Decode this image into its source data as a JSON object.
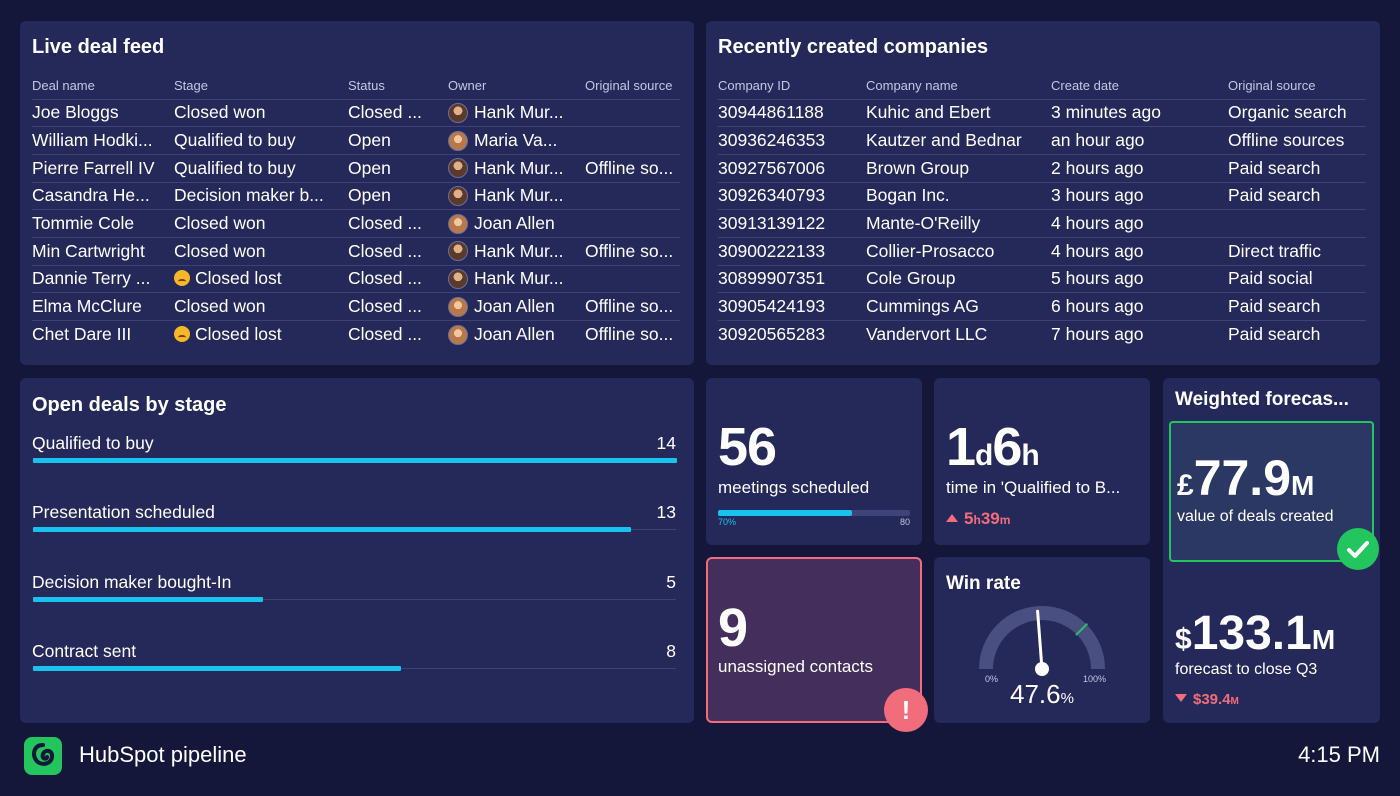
{
  "deal_feed": {
    "title": "Live deal feed",
    "columns": [
      "Deal name",
      "Stage",
      "Status",
      "Owner",
      "Original source"
    ],
    "rows": [
      {
        "deal": "Joe Bloggs",
        "stage": "Closed won",
        "emoji": false,
        "status": "Closed ...",
        "owner": "Hank Mur...",
        "avatar": "male",
        "source": ""
      },
      {
        "deal": "William Hodki...",
        "stage": "Qualified to buy",
        "emoji": false,
        "status": "Open",
        "owner": "Maria Va...",
        "avatar": "female",
        "source": ""
      },
      {
        "deal": "Pierre Farrell IV",
        "stage": "Qualified to buy",
        "emoji": false,
        "status": "Open",
        "owner": "Hank Mur...",
        "avatar": "male",
        "source": "Offline so..."
      },
      {
        "deal": "Casandra He...",
        "stage": "Decision maker b...",
        "emoji": false,
        "status": "Open",
        "owner": "Hank Mur...",
        "avatar": "male",
        "source": ""
      },
      {
        "deal": "Tommie Cole",
        "stage": "Closed won",
        "emoji": false,
        "status": "Closed ...",
        "owner": "Joan Allen",
        "avatar": "female",
        "source": ""
      },
      {
        "deal": "Min Cartwright",
        "stage": "Closed won",
        "emoji": false,
        "status": "Closed ...",
        "owner": "Hank Mur...",
        "avatar": "male",
        "source": "Offline so..."
      },
      {
        "deal": "Dannie Terry ...",
        "stage": "Closed lost",
        "emoji": true,
        "status": "Closed ...",
        "owner": "Hank Mur...",
        "avatar": "male",
        "source": ""
      },
      {
        "deal": "Elma McClure",
        "stage": "Closed won",
        "emoji": false,
        "status": "Closed ...",
        "owner": "Joan Allen",
        "avatar": "female",
        "source": "Offline so..."
      },
      {
        "deal": "Chet Dare III",
        "stage": "Closed lost",
        "emoji": true,
        "status": "Closed ...",
        "owner": "Joan Allen",
        "avatar": "female",
        "source": "Offline so..."
      }
    ]
  },
  "companies": {
    "title": "Recently created companies",
    "columns": [
      "Company ID",
      "Company name",
      "Create date",
      "Original source"
    ],
    "rows": [
      {
        "id": "30944861188",
        "name": "Kuhic and Ebert",
        "date": "3 minutes ago",
        "source": "Organic search"
      },
      {
        "id": "30936246353",
        "name": "Kautzer and Bednar",
        "date": "an hour ago",
        "source": "Offline sources"
      },
      {
        "id": "30927567006",
        "name": "Brown Group",
        "date": "2 hours ago",
        "source": "Paid search"
      },
      {
        "id": "30926340793",
        "name": "Bogan Inc.",
        "date": "3 hours ago",
        "source": "Paid search"
      },
      {
        "id": "30913139122",
        "name": "Mante-O'Reilly",
        "date": "4 hours ago",
        "source": ""
      },
      {
        "id": "30900222133",
        "name": "Collier-Prosacco",
        "date": "4 hours ago",
        "source": "Direct traffic"
      },
      {
        "id": "30899907351",
        "name": "Cole Group",
        "date": "5 hours ago",
        "source": "Paid social"
      },
      {
        "id": "30905424193",
        "name": "Cummings AG",
        "date": "6 hours ago",
        "source": "Paid search"
      },
      {
        "id": "30920565283",
        "name": "Vandervort LLC",
        "date": "7 hours ago",
        "source": "Paid search"
      }
    ]
  },
  "stages": {
    "title": "Open deals by stage",
    "max": 14,
    "items": [
      {
        "label": "Qualified to buy",
        "value": 14
      },
      {
        "label": "Presentation scheduled",
        "value": 13
      },
      {
        "label": "Decision maker bought-In",
        "value": 5
      },
      {
        "label": "Contract sent",
        "value": 8
      }
    ]
  },
  "meetings": {
    "value": "56",
    "label": "meetings scheduled",
    "progress_pct": 70,
    "progress_label": "70%",
    "target_label": "80"
  },
  "time_in_stage": {
    "days": "1",
    "days_unit": "d",
    "hours": "6",
    "hours_unit": "h",
    "label": "time in 'Qualified to B...",
    "change_hours": "5",
    "change_hours_unit": "h",
    "change_minutes": "39",
    "change_minutes_unit": "m"
  },
  "forecast": {
    "title": "Weighted forecas...",
    "created_currency": "£",
    "created_value": "77.9",
    "created_unit": "M",
    "created_label": "value of deals created",
    "close_currency": "$",
    "close_value": "133.1",
    "close_unit": "M",
    "close_label": "forecast to close Q3",
    "close_change": "$39.4",
    "close_change_unit": "M"
  },
  "unassigned": {
    "value": "9",
    "label": "unassigned contacts",
    "alert_symbol": "!"
  },
  "win_rate": {
    "title": "Win rate",
    "value": "47.6",
    "unit": "%",
    "min_label": "0%",
    "max_label": "100%",
    "fraction": 0.476,
    "target_fraction": 0.75
  },
  "footer": {
    "title": "HubSpot pipeline",
    "time": "4:15 PM"
  },
  "colors": {
    "background": "#14163a",
    "panel": "#25295a",
    "accent": "#18c3f0",
    "success": "#22c55e",
    "alert": "#f26d7b"
  }
}
